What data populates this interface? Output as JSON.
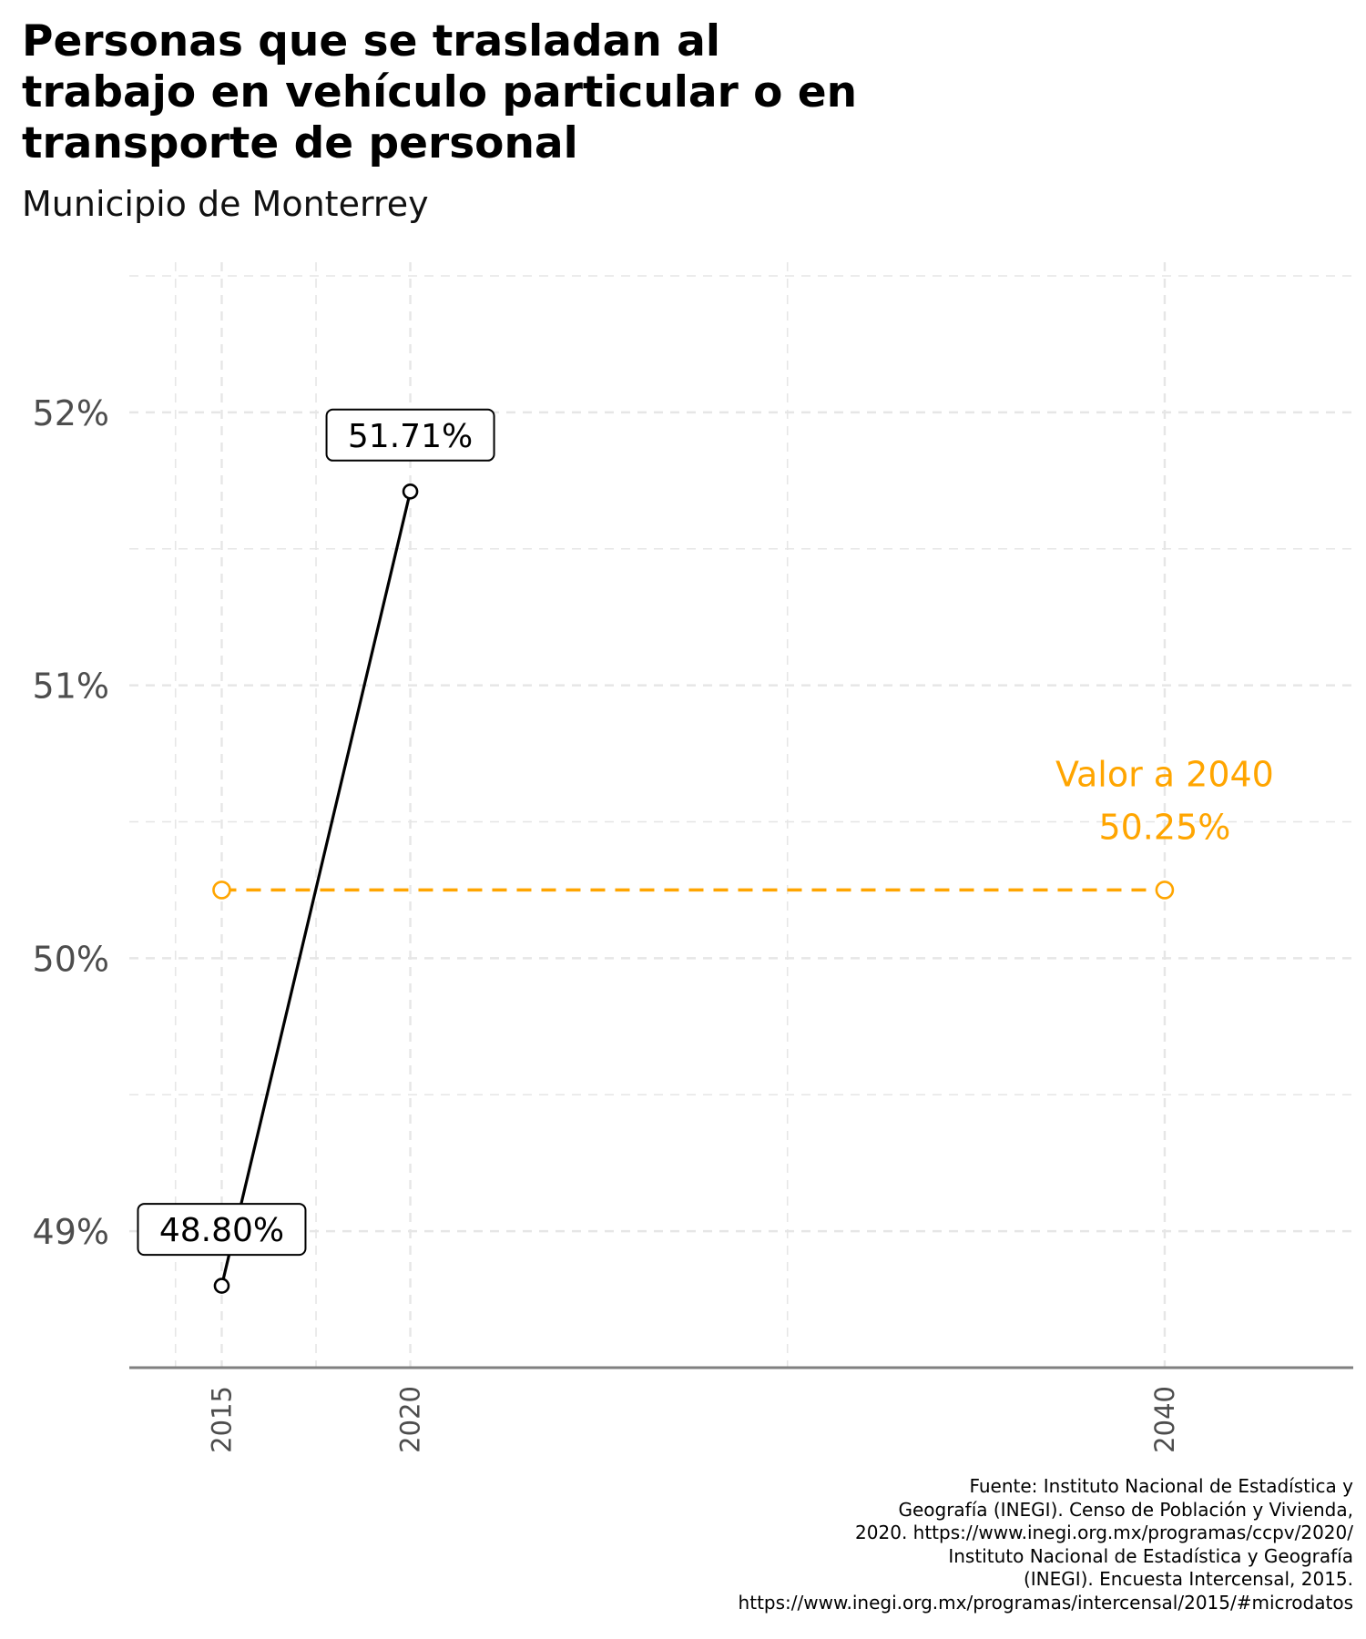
{
  "header": {
    "title": "Personas que se trasladan al\ntrabajo en vehículo particular o en\ntransporte de personal",
    "subtitle": "Municipio de Monterrey"
  },
  "caption": "Fuente: Instituto Nacional de Estadística y\nGeografía (INEGI). Censo de Población y Vivienda,\n2020. https://www.inegi.org.mx/programas/ccpv/2020/\nInstituto Nacional de Estadística y Geografía\n(INEGI). Encuesta Intercensal, 2015.\nhttps://www.inegi.org.mx/programas/intercensal/2015/#microdatos",
  "colors": {
    "series": "#000000",
    "projection": "#FFA500",
    "grid": "#e6e6e6",
    "axis": "#808080",
    "tick_text": "#4d4d4d"
  },
  "chart_data": {
    "type": "line",
    "title": "Personas que se trasladan al trabajo en vehículo particular o en transporte de personal",
    "subtitle": "Municipio de Monterrey",
    "xlabel": "",
    "ylabel": "",
    "x_ticks": [
      2015,
      2020,
      2040
    ],
    "y_ticks": [
      49,
      50,
      51,
      52
    ],
    "y_tick_labels": [
      "49%",
      "50%",
      "51%",
      "52%"
    ],
    "xlim": [
      2012.55,
      2045
    ],
    "ylim": [
      48.5,
      52.55
    ],
    "grid": true,
    "x_ticks_rotated": true,
    "series": [
      {
        "style": "solid",
        "points": [
          {
            "x": 2015,
            "y": 48.8,
            "label": "48.80%"
          },
          {
            "x": 2020,
            "y": 51.71,
            "label": "51.71%"
          }
        ]
      },
      {
        "style": "dashed",
        "points": [
          {
            "x": 2015,
            "y": 50.25
          },
          {
            "x": 2040,
            "y": 50.25
          }
        ]
      }
    ],
    "annotations": [
      {
        "text": "Valor a 2040",
        "x": 2040,
        "y": 50.25
      },
      {
        "text": "50.25%",
        "x": 2040,
        "y": 50.25
      }
    ]
  }
}
